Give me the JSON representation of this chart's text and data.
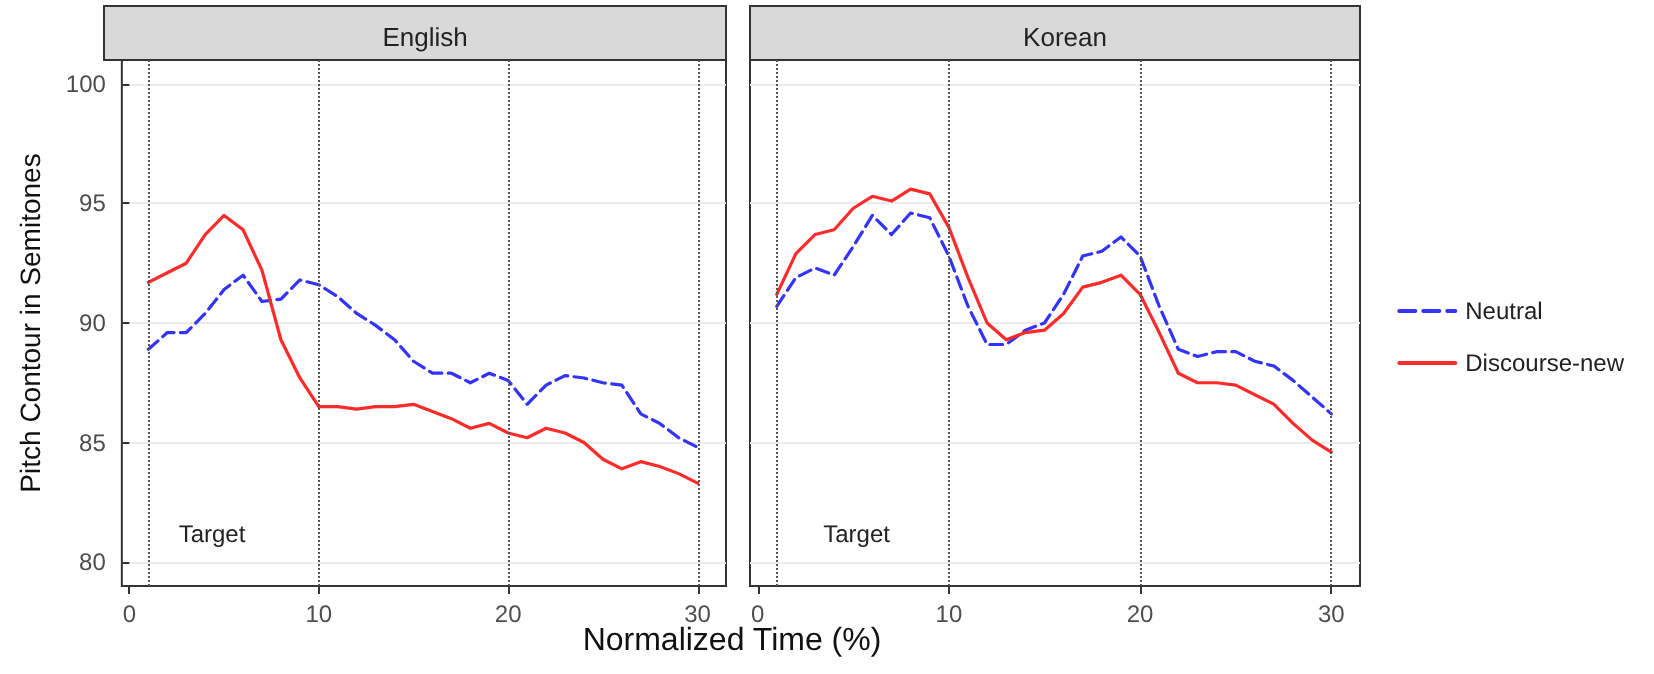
{
  "chart_data": [
    {
      "type": "line",
      "title": "English",
      "xlabel": "Normalized Time (%)",
      "ylabel": "Pitch Contour in Semitones",
      "x": [
        1,
        2,
        3,
        4,
        5,
        6,
        7,
        8,
        9,
        10,
        11,
        12,
        13,
        14,
        15,
        16,
        17,
        18,
        19,
        20,
        21,
        22,
        23,
        24,
        25,
        26,
        27,
        28,
        29,
        30
      ],
      "xlim": [
        -0.4,
        31.5
      ],
      "ylim": [
        79,
        101
      ],
      "xticks": [
        0,
        10,
        20,
        30
      ],
      "yticks": [
        80,
        85,
        90,
        95,
        100
      ],
      "grid": "y",
      "legend": false,
      "marker": "none",
      "annotations": [
        "Target"
      ],
      "ref_lines": [
        {
          "axis": "x",
          "value": 1,
          "color": "#555555",
          "line_style": "dotted"
        },
        {
          "axis": "x",
          "value": 10,
          "color": "#555555",
          "line_style": "dotted"
        },
        {
          "axis": "x",
          "value": 20,
          "color": "#555555",
          "line_style": "dotted"
        },
        {
          "axis": "x",
          "value": 30,
          "color": "#555555",
          "line_style": "dotted"
        }
      ],
      "series": [
        {
          "color": "#3333ff",
          "line_style": "dashed",
          "values": [
            88.9,
            89.6,
            89.6,
            90.4,
            91.4,
            92.0,
            90.9,
            91.0,
            91.8,
            91.6,
            91.1,
            90.4,
            89.9,
            89.3,
            88.4,
            87.9,
            87.9,
            87.5,
            87.9,
            87.6,
            86.6,
            87.4,
            87.8,
            87.7,
            87.5,
            87.4,
            86.2,
            85.8,
            85.2,
            84.8
          ]
        },
        {
          "color": "#ff2a2a",
          "line_style": "solid",
          "values": [
            91.7,
            92.1,
            92.5,
            93.7,
            94.5,
            93.9,
            92.2,
            89.3,
            87.7,
            86.5,
            86.5,
            86.4,
            86.5,
            86.5,
            86.6,
            86.3,
            86.0,
            85.6,
            85.8,
            85.4,
            85.2,
            85.6,
            85.4,
            85.0,
            84.3,
            83.9,
            84.2,
            84.0,
            83.7,
            83.3
          ]
        }
      ]
    },
    {
      "type": "line",
      "title": "Korean",
      "x": [
        1,
        2,
        3,
        4,
        5,
        6,
        7,
        8,
        9,
        10,
        11,
        12,
        13,
        14,
        15,
        16,
        17,
        18,
        19,
        20,
        21,
        22,
        23,
        24,
        25,
        26,
        27,
        28,
        29,
        30
      ],
      "xlim": [
        -0.4,
        31.5
      ],
      "ylim": [
        79,
        101
      ],
      "xticks": [
        0,
        10,
        20,
        30
      ],
      "yticks": [
        80,
        85,
        90,
        95,
        100
      ],
      "grid": "y",
      "legend": "right",
      "tick_labels": "x",
      "marker": "none",
      "annotations": [
        "Target"
      ],
      "ref_lines": [
        {
          "axis": "x",
          "value": 1,
          "color": "#555555",
          "line_style": "dotted"
        },
        {
          "axis": "x",
          "value": 10,
          "color": "#555555",
          "line_style": "dotted"
        },
        {
          "axis": "x",
          "value": 20,
          "color": "#555555",
          "line_style": "dotted"
        },
        {
          "axis": "x",
          "value": 30,
          "color": "#555555",
          "line_style": "dotted"
        }
      ],
      "series": [
        {
          "name": "Neutral",
          "color": "#3333ff",
          "line_style": "dashed",
          "values": [
            90.7,
            91.9,
            92.3,
            92.0,
            93.2,
            94.5,
            93.7,
            94.6,
            94.4,
            92.8,
            90.7,
            89.1,
            89.1,
            89.7,
            90.0,
            91.2,
            92.8,
            93.0,
            93.6,
            92.8,
            90.7,
            88.9,
            88.6,
            88.8,
            88.8,
            88.4,
            88.2,
            87.6,
            86.9,
            86.2
          ]
        },
        {
          "name": "Discourse-new",
          "color": "#ff2a2a",
          "line_style": "solid",
          "values": [
            91.2,
            92.9,
            93.7,
            93.9,
            94.8,
            95.3,
            95.1,
            95.6,
            95.4,
            94.0,
            91.9,
            90.0,
            89.3,
            89.6,
            89.7,
            90.4,
            91.5,
            91.7,
            92.0,
            91.2,
            89.6,
            87.9,
            87.5,
            87.5,
            87.4,
            87.0,
            86.6,
            85.8,
            85.1,
            84.6
          ]
        }
      ]
    }
  ]
}
